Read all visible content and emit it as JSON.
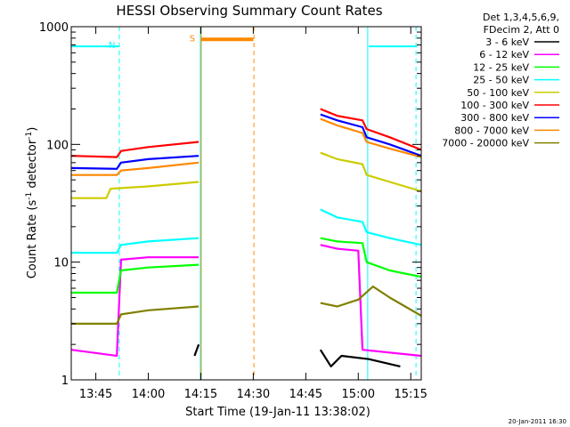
{
  "chart_data": {
    "type": "line",
    "title": "HESSI Observing Summary Count Rates",
    "xlabel": "Start Time (19-Jan-11 13:38:02)",
    "ylabel_main": "Count Rate (s",
    "ylabel_sup1": "-1",
    "ylabel_mid": " detector",
    "ylabel_sup2": "-1",
    "ylabel_end": ")",
    "y_scale": "log",
    "ylim": [
      1,
      1000
    ],
    "xlim_minutes": [
      13.633,
      15.3
    ],
    "x_ticks": [
      {
        "label": "13:45",
        "h": 13.75
      },
      {
        "label": "14:00",
        "h": 14.0
      },
      {
        "label": "14:15",
        "h": 14.25
      },
      {
        "label": "14:30",
        "h": 14.5
      },
      {
        "label": "14:45",
        "h": 14.75
      },
      {
        "label": "15:00",
        "h": 15.0
      },
      {
        "label": "15:15",
        "h": 15.25
      }
    ],
    "y_ticks": [
      {
        "label": "1",
        "v": 1
      },
      {
        "label": "10",
        "v": 10
      },
      {
        "label": "100",
        "v": 100
      },
      {
        "label": "1000",
        "v": 1000
      }
    ],
    "legend_header": [
      "Det 1,3,4,5,6,9,",
      "FDecim 2, Att 0"
    ],
    "legend_placement": "right",
    "series": [
      {
        "name": "3 - 6 keV",
        "color": "#000000",
        "segments": [
          [
            [
              14.22,
              1.6
            ],
            [
              14.24,
              2.0
            ]
          ],
          [
            [
              14.82,
              1.8
            ],
            [
              14.87,
              1.3
            ],
            [
              14.92,
              1.6
            ],
            [
              15.05,
              1.5
            ],
            [
              15.2,
              1.3
            ]
          ]
        ]
      },
      {
        "name": "6 - 12 keV",
        "color": "#ff00ff",
        "segments": [
          [
            [
              13.633,
              1.8
            ],
            [
              13.85,
              1.6
            ],
            [
              13.87,
              10.5
            ],
            [
              14.0,
              11
            ],
            [
              14.24,
              11
            ]
          ],
          [
            [
              14.82,
              14
            ],
            [
              14.9,
              13
            ],
            [
              15.0,
              12.5
            ],
            [
              15.02,
              1.8
            ],
            [
              15.3,
              1.6
            ]
          ]
        ]
      },
      {
        "name": "12 - 25 keV",
        "color": "#00ff00",
        "segments": [
          [
            [
              13.633,
              5.5
            ],
            [
              13.85,
              5.5
            ],
            [
              13.87,
              8.5
            ],
            [
              14.0,
              9
            ],
            [
              14.24,
              9.5
            ]
          ],
          [
            [
              14.82,
              16
            ],
            [
              14.9,
              15
            ],
            [
              15.02,
              14.5
            ],
            [
              15.04,
              10
            ],
            [
              15.15,
              8.5
            ],
            [
              15.3,
              7.5
            ]
          ]
        ]
      },
      {
        "name": "25 - 50 keV",
        "color": "#00ffff",
        "segments": [
          [
            [
              13.633,
              12
            ],
            [
              13.85,
              12
            ],
            [
              13.87,
              14
            ],
            [
              14.0,
              15
            ],
            [
              14.24,
              16
            ]
          ],
          [
            [
              14.82,
              28
            ],
            [
              14.9,
              24
            ],
            [
              15.02,
              22
            ],
            [
              15.04,
              18
            ],
            [
              15.15,
              16
            ],
            [
              15.3,
              14
            ]
          ]
        ]
      },
      {
        "name": "50 - 100 keV",
        "color": "#cccc00",
        "segments": [
          [
            [
              13.633,
              35
            ],
            [
              13.8,
              35
            ],
            [
              13.82,
              42
            ],
            [
              14.0,
              44
            ],
            [
              14.24,
              48
            ]
          ],
          [
            [
              14.82,
              85
            ],
            [
              14.9,
              75
            ],
            [
              15.02,
              68
            ],
            [
              15.04,
              55
            ],
            [
              15.15,
              48
            ],
            [
              15.3,
              40
            ]
          ]
        ]
      },
      {
        "name": "100 - 300 keV",
        "color": "#ff0000",
        "segments": [
          [
            [
              13.633,
              80
            ],
            [
              13.85,
              78
            ],
            [
              13.87,
              88
            ],
            [
              14.0,
              95
            ],
            [
              14.24,
              105
            ]
          ],
          [
            [
              14.82,
              200
            ],
            [
              14.9,
              175
            ],
            [
              15.02,
              160
            ],
            [
              15.04,
              135
            ],
            [
              15.15,
              115
            ],
            [
              15.3,
              90
            ]
          ]
        ]
      },
      {
        "name": "300 - 800 keV",
        "color": "#0000ff",
        "segments": [
          [
            [
              13.633,
              63
            ],
            [
              13.85,
              62
            ],
            [
              13.87,
              70
            ],
            [
              14.0,
              75
            ],
            [
              14.24,
              80
            ]
          ],
          [
            [
              14.82,
              180
            ],
            [
              14.9,
              160
            ],
            [
              15.02,
              140
            ],
            [
              15.04,
              115
            ],
            [
              15.15,
              100
            ],
            [
              15.3,
              80
            ]
          ]
        ]
      },
      {
        "name": "800 - 7000 keV",
        "color": "#ff8800",
        "segments": [
          [
            [
              13.633,
              55
            ],
            [
              13.85,
              55
            ],
            [
              13.87,
              60
            ],
            [
              14.0,
              63
            ],
            [
              14.24,
              70
            ]
          ],
          [
            [
              14.82,
              165
            ],
            [
              14.9,
              145
            ],
            [
              15.02,
              125
            ],
            [
              15.04,
              105
            ],
            [
              15.15,
              92
            ],
            [
              15.3,
              78
            ]
          ]
        ]
      },
      {
        "name": "7000 - 20000 keV",
        "color": "#808000",
        "segments": [
          [
            [
              13.633,
              3.0
            ],
            [
              13.85,
              3.0
            ],
            [
              13.87,
              3.6
            ],
            [
              14.0,
              3.9
            ],
            [
              14.24,
              4.2
            ]
          ],
          [
            [
              14.82,
              4.5
            ],
            [
              14.9,
              4.2
            ],
            [
              15.0,
              4.8
            ],
            [
              15.07,
              6.2
            ],
            [
              15.15,
              5.0
            ],
            [
              15.3,
              3.5
            ]
          ]
        ]
      }
    ],
    "annotations": [
      {
        "label": "N",
        "color": "#00ffff",
        "h": 13.86,
        "y": 680,
        "line_start": 13.633,
        "line_end": 13.86
      },
      {
        "label": "S",
        "color": "#ff8800",
        "h": 14.24,
        "y": 780,
        "line_start": 14.25,
        "line_end": 14.5
      },
      {
        "label": "",
        "color": "#00ffff",
        "h": 15.265,
        "y": 680,
        "line_start": 15.05,
        "line_end": 15.28
      }
    ],
    "vertical_markers": [
      {
        "h": 13.633,
        "color": "#00ffff",
        "style": "solid"
      },
      {
        "h": 13.862,
        "color": "#00ffff",
        "style": "dashed"
      },
      {
        "h": 14.248,
        "color": "#00ffff",
        "style": "solid"
      },
      {
        "h": 14.252,
        "color": "#ff8800",
        "style": "solid"
      },
      {
        "h": 14.503,
        "color": "#ff8800",
        "style": "dashed"
      },
      {
        "h": 15.045,
        "color": "#00ffff",
        "style": "solid"
      },
      {
        "h": 15.275,
        "color": "#00ffff",
        "style": "dashed"
      }
    ],
    "footer_date": "20-Jan-2011 16:30"
  }
}
